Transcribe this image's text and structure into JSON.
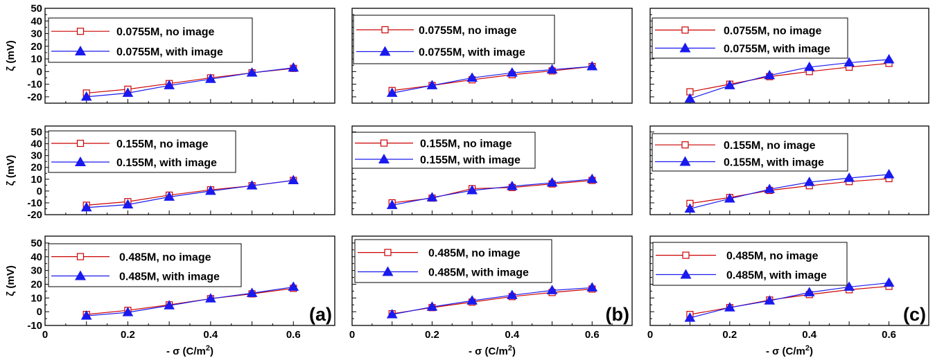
{
  "figure": {
    "ylabel": "ζ (mV)",
    "xlabel": "- σ (C/m²)",
    "panel_labels": [
      "(a)",
      "(b)",
      "(c)"
    ],
    "colors": {
      "no_image": "#cc0000",
      "with_image": "#1a1aee",
      "axis": "#000000"
    },
    "markers": {
      "no_image": "open-square",
      "with_image": "filled-triangle"
    }
  },
  "chart_data": [
    {
      "type": "line",
      "panel": "(a)",
      "row": 1,
      "x": [
        0.1,
        0.2,
        0.3,
        0.4,
        0.5,
        0.6
      ],
      "xlim": [
        0,
        0.7
      ],
      "ylim": [
        -25,
        50
      ],
      "xticks": [],
      "yticks": [
        -20,
        -10,
        0,
        10,
        20,
        30,
        40,
        50
      ],
      "ylabel": "ζ (mV)",
      "series": [
        {
          "name": "0.0755M, no image",
          "values": [
            -17,
            -14,
            -9.5,
            -5,
            -1,
            2.5
          ]
        },
        {
          "name": "0.0755M, with image",
          "values": [
            -20,
            -17,
            -11,
            -6,
            -1,
            3
          ]
        }
      ]
    },
    {
      "type": "line",
      "panel": "(b)",
      "row": 1,
      "x": [
        0.1,
        0.2,
        0.3,
        0.4,
        0.5,
        0.6
      ],
      "xlim": [
        0,
        0.7
      ],
      "ylim": [
        -25,
        50
      ],
      "xticks": [],
      "yticks": [],
      "series": [
        {
          "name": "0.0755M, no image",
          "values": [
            -15,
            -11,
            -6.5,
            -2.5,
            0.5,
            4
          ]
        },
        {
          "name": "0.0755M, with image",
          "values": [
            -17,
            -11,
            -5,
            -1,
            1.5,
            4
          ]
        }
      ]
    },
    {
      "type": "line",
      "panel": "(c)",
      "row": 1,
      "x": [
        0.1,
        0.2,
        0.3,
        0.4,
        0.5,
        0.6
      ],
      "xlim": [
        0,
        0.7
      ],
      "ylim": [
        -25,
        50
      ],
      "xticks": [],
      "yticks": [],
      "series": [
        {
          "name": "0.0755M, no image",
          "values": [
            -16,
            -10,
            -4,
            0,
            3.5,
            6.5
          ]
        },
        {
          "name": "0.0755M, with image",
          "values": [
            -21.5,
            -11,
            -3,
            3.5,
            7,
            9.5
          ]
        }
      ]
    },
    {
      "type": "line",
      "panel": "(a)",
      "row": 2,
      "x": [
        0.1,
        0.2,
        0.3,
        0.4,
        0.5,
        0.6
      ],
      "xlim": [
        0,
        0.7
      ],
      "ylim": [
        -20,
        55
      ],
      "xticks": [],
      "yticks": [
        -20,
        -10,
        0,
        10,
        20,
        30,
        40,
        50
      ],
      "ylabel": "ζ (mV)",
      "series": [
        {
          "name": "0.155M, no image",
          "values": [
            -12,
            -9,
            -3.5,
            1,
            4.5,
            9
          ]
        },
        {
          "name": "0.155M, with image",
          "values": [
            -14,
            -11.5,
            -5,
            0,
            4.5,
            9
          ]
        }
      ]
    },
    {
      "type": "line",
      "panel": "(b)",
      "row": 2,
      "x": [
        0.1,
        0.2,
        0.3,
        0.4,
        0.5,
        0.6
      ],
      "xlim": [
        0,
        0.7
      ],
      "ylim": [
        -20,
        55
      ],
      "xticks": [],
      "yticks": [],
      "series": [
        {
          "name": "0.155M, no image",
          "values": [
            -10,
            -6,
            2,
            3,
            6,
            9
          ]
        },
        {
          "name": "0.155M, with image",
          "values": [
            -12,
            -5.5,
            0.5,
            4,
            7,
            10
          ]
        }
      ]
    },
    {
      "type": "line",
      "panel": "(c)",
      "row": 2,
      "x": [
        0.1,
        0.2,
        0.3,
        0.4,
        0.5,
        0.6
      ],
      "xlim": [
        0,
        0.7
      ],
      "ylim": [
        -20,
        55
      ],
      "xticks": [],
      "yticks": [],
      "series": [
        {
          "name": "0.155M, no image",
          "values": [
            -10.5,
            -5.5,
            0.5,
            4.5,
            8,
            10.5
          ]
        },
        {
          "name": "0.155M, with image",
          "values": [
            -15,
            -6.5,
            1.5,
            7.5,
            11,
            14
          ]
        }
      ]
    },
    {
      "type": "line",
      "panel": "(a)",
      "row": 3,
      "x": [
        0.1,
        0.2,
        0.3,
        0.4,
        0.5,
        0.6
      ],
      "xlim": [
        0,
        0.7
      ],
      "ylim": [
        -10,
        55
      ],
      "xticks": [
        0,
        0.2,
        0.4,
        0.6
      ],
      "yticks": [
        -10,
        0,
        10,
        20,
        30,
        40,
        50
      ],
      "ylabel": "ζ (mV)",
      "xlabel": "- σ (C/m²)",
      "series": [
        {
          "name": "0.485M, no image",
          "values": [
            -2,
            1,
            5,
            9.5,
            13,
            17
          ]
        },
        {
          "name": "0.485M, with image",
          "values": [
            -3,
            -0.5,
            4.5,
            9.5,
            13.5,
            18
          ]
        }
      ]
    },
    {
      "type": "line",
      "panel": "(b)",
      "row": 3,
      "x": [
        0.1,
        0.2,
        0.3,
        0.4,
        0.5,
        0.6
      ],
      "xlim": [
        0,
        0.7
      ],
      "ylim": [
        -10,
        55
      ],
      "xticks": [
        0,
        0.2,
        0.4,
        0.6
      ],
      "yticks": [],
      "xlabel": "- σ (C/m²)",
      "series": [
        {
          "name": "0.485M, no image",
          "values": [
            -1.5,
            3,
            7,
            11,
            14,
            16.5
          ]
        },
        {
          "name": "0.485M, with image",
          "values": [
            -2,
            3.5,
            8,
            12,
            15.5,
            17.5
          ]
        }
      ]
    },
    {
      "type": "line",
      "panel": "(c)",
      "row": 3,
      "x": [
        0.1,
        0.2,
        0.3,
        0.4,
        0.5,
        0.6
      ],
      "xlim": [
        0,
        0.7
      ],
      "ylim": [
        -10,
        55
      ],
      "xticks": [
        0,
        0.2,
        0.4,
        0.6
      ],
      "yticks": [],
      "xlabel": "- σ (C/m²)",
      "series": [
        {
          "name": "0.485M, no image",
          "values": [
            -2,
            3,
            8.5,
            12.5,
            16,
            18.5
          ]
        },
        {
          "name": "0.485M, with image",
          "values": [
            -4.5,
            3,
            8,
            14,
            18,
            21
          ]
        }
      ]
    }
  ]
}
